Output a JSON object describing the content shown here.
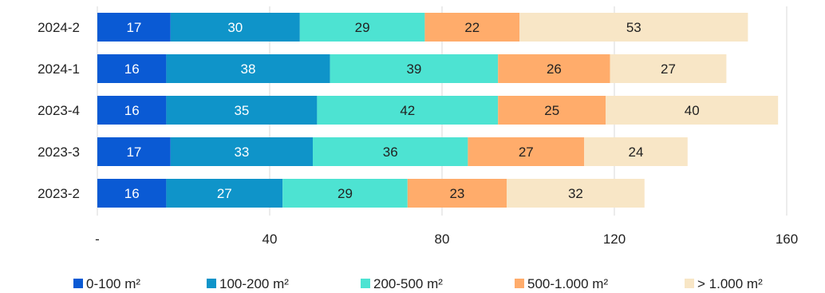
{
  "chart_data": {
    "type": "bar",
    "orientation": "horizontal",
    "stacked": true,
    "title": "",
    "xlabel": "",
    "ylabel": "",
    "categories": [
      "2024-2",
      "2024-1",
      "2023-4",
      "2023-3",
      "2023-2"
    ],
    "series": [
      {
        "name": "0-100 m²",
        "color": "#0a5ad4",
        "label_color": "#ffffff",
        "values": [
          17,
          16,
          16,
          17,
          16
        ]
      },
      {
        "name": "100-200 m²",
        "color": "#0f94c9",
        "label_color": "#ffffff",
        "values": [
          30,
          38,
          35,
          33,
          27
        ]
      },
      {
        "name": "200-500 m²",
        "color": "#4de3d2",
        "label_color": "#222222",
        "values": [
          29,
          39,
          42,
          36,
          29
        ]
      },
      {
        "name": "500-1.000 m²",
        "color": "#ffac6b",
        "label_color": "#222222",
        "values": [
          22,
          26,
          25,
          27,
          23
        ]
      },
      {
        "name": "> 1.000 m²",
        "color": "#f8e6c6",
        "label_color": "#222222",
        "values": [
          53,
          27,
          40,
          24,
          32
        ]
      }
    ],
    "xlim": [
      0,
      160
    ],
    "x_ticks": [
      0,
      40,
      80,
      120,
      160
    ],
    "x_tick_labels": [
      "-",
      "40",
      "80",
      "120",
      "160"
    ],
    "grid": "vertical",
    "legend_position": "bottom"
  }
}
